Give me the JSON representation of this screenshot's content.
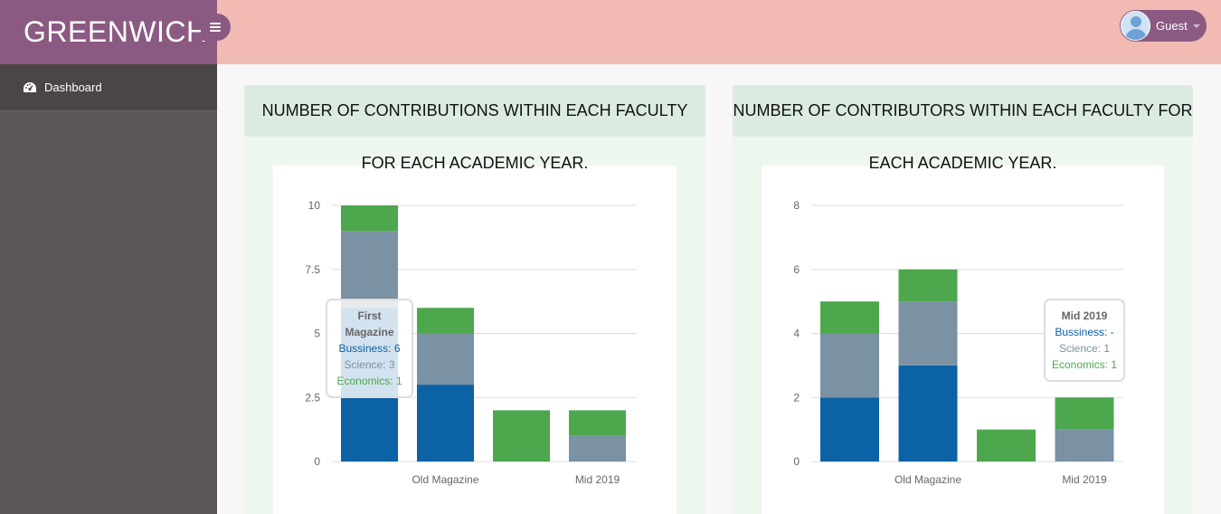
{
  "brand": "GREENWICH",
  "user": {
    "name": "Guest"
  },
  "sidebar": {
    "items": [
      {
        "label": "Dashboard"
      }
    ]
  },
  "colors": {
    "business": "#0b62a4",
    "science": "#7a92a3",
    "economics": "#4da74d",
    "brand": "#8b5a82",
    "topbar": "#f1bbb4"
  },
  "panels": [
    {
      "title_line1": "NUMBER OF CONTRIBUTIONS WITHIN EACH FACULTY",
      "title_line2": "FOR EACH ACADEMIC YEAR.",
      "tooltip": {
        "title": "First Magazine",
        "lines": [
          "Bussiness: 6",
          "Science: 3",
          "Economics: 1"
        ]
      }
    },
    {
      "title_line1": "NUMBER OF CONTRIBUTORS WITHIN EACH FACULTY FOR",
      "title_line2": "EACH ACADEMIC YEAR.",
      "tooltip": {
        "title": "Mid 2019",
        "lines": [
          "Bussiness: -",
          "Science: 1",
          "Economics: 1"
        ]
      }
    }
  ],
  "chart_data": [
    {
      "type": "bar",
      "stacked": true,
      "categories": [
        "First Magazine",
        "Old Magazine",
        "",
        "Mid 2019"
      ],
      "x_tick_labels": [
        "",
        "Old Magazine",
        "",
        "Mid 2019"
      ],
      "series": [
        {
          "name": "Bussiness",
          "values": [
            6,
            3,
            0,
            0
          ]
        },
        {
          "name": "Science",
          "values": [
            3,
            2,
            0,
            1
          ]
        },
        {
          "name": "Economics",
          "values": [
            1,
            1,
            2,
            1
          ]
        }
      ],
      "ylim": [
        0,
        10
      ],
      "yticks": [
        "0",
        "2.5",
        "5",
        "7.5",
        "10"
      ],
      "grid": true
    },
    {
      "type": "bar",
      "stacked": true,
      "categories": [
        "",
        "Old Magazine",
        "",
        "Mid 2019"
      ],
      "x_tick_labels": [
        "",
        "Old Magazine",
        "",
        "Mid 2019"
      ],
      "series": [
        {
          "name": "Bussiness",
          "values": [
            2,
            3,
            0,
            0
          ]
        },
        {
          "name": "Science",
          "values": [
            2,
            2,
            0,
            1
          ]
        },
        {
          "name": "Economics",
          "values": [
            1,
            1,
            1,
            1
          ]
        }
      ],
      "ylim": [
        0,
        8
      ],
      "yticks": [
        "0",
        "2",
        "4",
        "6",
        "8"
      ],
      "grid": true
    }
  ]
}
